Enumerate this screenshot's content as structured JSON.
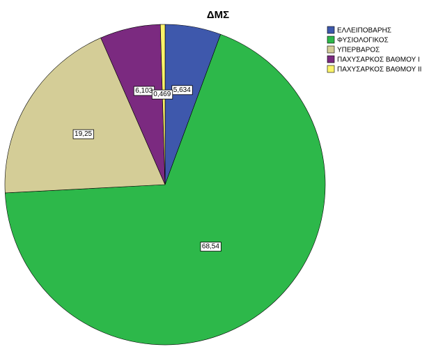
{
  "chart_data": {
    "type": "pie",
    "title": "ΔΜΣ",
    "categories": [
      "ΕΛΛΕΙΠΟΒΑΡΗΣ",
      "ΦΥΣΙΟΛΟΓΙΚΟΣ",
      "ΥΠΕΡΒΑΡΟΣ",
      "ΠΑΧΥΣΑΡΚΟΣ ΒΑΘΜΟΥ Ι",
      "ΠΑΧΥΣΑΡΚΟΣ ΒΑΘΜΟΥ ΙΙ"
    ],
    "values": [
      5.634,
      68.54,
      19.25,
      6.103,
      0.469
    ],
    "value_labels": [
      "5,634",
      "68,54",
      "19,25",
      "6,103",
      "0,469"
    ],
    "colors": [
      "#3e58ac",
      "#2db84a",
      "#d4cd97",
      "#7b2a80",
      "#fbf46a"
    ],
    "legend": "top-right"
  }
}
